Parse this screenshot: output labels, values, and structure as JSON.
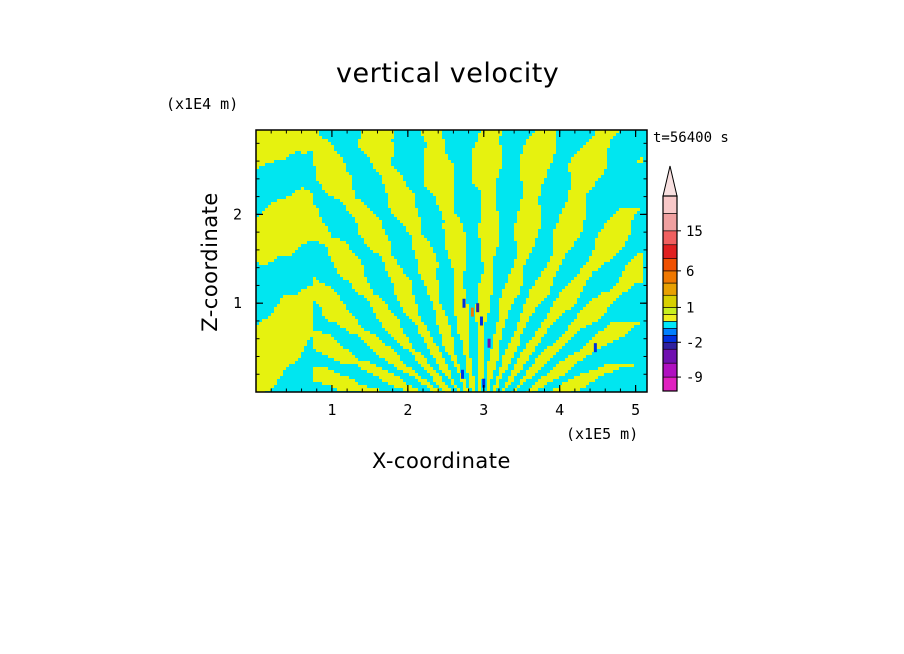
{
  "chart_data": {
    "type": "heatmap",
    "title": "vertical velocity",
    "time_label": "t=56400 s",
    "xlabel": "X-coordinate",
    "ylabel": "Z-coordinate",
    "x_scale_label": "(x1E5 m)",
    "y_scale_label": "(x1E4 m)",
    "xlim": [
      0,
      5.15
    ],
    "ylim": [
      0,
      2.95
    ],
    "x_ticks": [
      1,
      2,
      3,
      4,
      5
    ],
    "y_ticks": [
      1,
      2
    ],
    "colorbar": {
      "labels": [
        "15",
        "6",
        "1",
        "-2",
        "-9"
      ],
      "label_levels": [
        15,
        6,
        1,
        -2,
        -9
      ],
      "levels": [
        -12,
        -9,
        -6,
        -4,
        -2,
        -1,
        -0.5,
        0,
        0.5,
        1,
        2,
        4,
        6,
        9,
        12,
        15,
        20,
        25
      ],
      "colors": [
        "#e020c0",
        "#b010c0",
        "#7010b0",
        "#3020a0",
        "#0030e0",
        "#0080ff",
        "#00e8f8",
        "#f0f020",
        "#c8f020",
        "#d8d000",
        "#e8a000",
        "#f07800",
        "#f05000",
        "#e02020",
        "#f06060",
        "#f0a0a0",
        "#f8c8c8"
      ],
      "extend_max": true
    },
    "field_description_colors": {
      "positive": "#e6f20f",
      "negative": "#00e6f0"
    }
  }
}
